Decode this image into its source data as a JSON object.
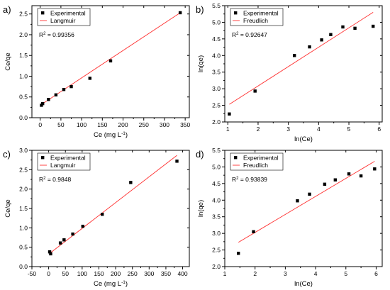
{
  "colors": {
    "points": "#000000",
    "fit": "#ff3030",
    "frame": "#000000",
    "background": "#ffffff"
  },
  "chart_data": [
    {
      "panel": "a)",
      "type": "scatter",
      "xlabel": "Ce (mg L",
      "xlabel_sup": "-1",
      "xlabel_end": ")",
      "ylabel": "Ce/qe",
      "xlim": [
        -20,
        360
      ],
      "ylim": [
        0,
        2.7
      ],
      "xticks": [
        0,
        50,
        100,
        150,
        200,
        250,
        300,
        350
      ],
      "yticks": [
        0.0,
        0.5,
        1.0,
        1.5,
        2.0,
        2.5
      ],
      "xtick_labels": [
        "0",
        "50",
        "100",
        "150",
        "200",
        "250",
        "300",
        "350"
      ],
      "ytick_labels": [
        "0.0",
        "0.5",
        "1.0",
        "1.5",
        "2.0",
        "2.5"
      ],
      "legend": {
        "placement": "top-left",
        "points_label": "Experimental",
        "fit_label": "Langmuir"
      },
      "annotation": {
        "prefix": "R",
        "sup": "2",
        "text": " = 0.99356",
        "position": "upper-left"
      },
      "points": [
        [
          3,
          0.3
        ],
        [
          6,
          0.34
        ],
        [
          20,
          0.44
        ],
        [
          38,
          0.55
        ],
        [
          57,
          0.68
        ],
        [
          75,
          0.75
        ],
        [
          120,
          0.95
        ],
        [
          170,
          1.37
        ],
        [
          338,
          2.53
        ]
      ],
      "fit": [
        [
          0,
          0.3
        ],
        [
          338,
          2.53
        ]
      ]
    },
    {
      "panel": "b)",
      "type": "scatter",
      "xlabel": "ln(Ce)",
      "xlabel_sup": "",
      "xlabel_end": "",
      "ylabel": "ln(qe)",
      "xlim": [
        0.9,
        6.1
      ],
      "ylim": [
        2.0,
        5.5
      ],
      "xticks": [
        1,
        2,
        3,
        4,
        5,
        6
      ],
      "yticks": [
        2.0,
        2.5,
        3.0,
        3.5,
        4.0,
        4.5,
        5.0,
        5.5
      ],
      "xtick_labels": [
        "1",
        "2",
        "3",
        "4",
        "5",
        "6"
      ],
      "ytick_labels": [
        "2.0",
        "2.5",
        "3.0",
        "3.5",
        "4.0",
        "4.5",
        "5.0",
        "5.5"
      ],
      "legend": {
        "placement": "top-left",
        "points_label": "Experimental",
        "fit_label": "Freudlich"
      },
      "annotation": {
        "prefix": "R",
        "sup": "2",
        "text": " = 0.92647",
        "position": "upper-left"
      },
      "points": [
        [
          1.05,
          2.24
        ],
        [
          1.9,
          2.93
        ],
        [
          3.2,
          4.0
        ],
        [
          3.7,
          4.26
        ],
        [
          4.1,
          4.47
        ],
        [
          4.4,
          4.63
        ],
        [
          4.8,
          4.86
        ],
        [
          5.2,
          4.82
        ],
        [
          5.8,
          4.88
        ]
      ],
      "fit": [
        [
          1.05,
          2.53
        ],
        [
          5.8,
          5.3
        ]
      ]
    },
    {
      "panel": "c)",
      "type": "scatter",
      "xlabel": "Ce (mg L",
      "xlabel_sup": "-1",
      "xlabel_end": ")",
      "ylabel": "Ce/qe",
      "xlim": [
        -50,
        420
      ],
      "ylim": [
        0,
        3.0
      ],
      "xticks": [
        -50,
        0,
        50,
        100,
        150,
        200,
        250,
        300,
        350,
        400
      ],
      "yticks": [
        0.0,
        0.5,
        1.0,
        1.5,
        2.0,
        2.5,
        3.0
      ],
      "xtick_labels": [
        "-50",
        "0",
        "50",
        "100",
        "150",
        "200",
        "250",
        "300",
        "350",
        "400"
      ],
      "ytick_labels": [
        "0.0",
        "0.5",
        "1.0",
        "1.5",
        "2.0",
        "2.5",
        "3.0"
      ],
      "legend": {
        "placement": "top-left",
        "points_label": "Experimental",
        "fit_label": "Langmuir"
      },
      "annotation": {
        "prefix": "R",
        "sup": "2",
        "text": " = 0.9848",
        "position": "upper-left"
      },
      "points": [
        [
          3,
          0.38
        ],
        [
          6,
          0.33
        ],
        [
          35,
          0.61
        ],
        [
          46,
          0.69
        ],
        [
          72,
          0.84
        ],
        [
          102,
          1.04
        ],
        [
          160,
          1.35
        ],
        [
          245,
          2.17
        ],
        [
          383,
          2.72
        ]
      ],
      "fit": [
        [
          3,
          0.34
        ],
        [
          383,
          2.87
        ]
      ]
    },
    {
      "panel": "d)",
      "type": "scatter",
      "xlabel": "ln(Ce)",
      "xlabel_sup": "",
      "xlabel_end": "",
      "ylabel": "ln(qe)",
      "xlim": [
        1.0,
        6.2
      ],
      "ylim": [
        2.0,
        5.5
      ],
      "xticks": [
        1,
        2,
        3,
        4,
        5,
        6
      ],
      "yticks": [
        2.0,
        2.5,
        3.0,
        3.5,
        4.0,
        4.5,
        5.0,
        5.5
      ],
      "xtick_labels": [
        "1",
        "2",
        "3",
        "4",
        "5",
        "6"
      ],
      "ytick_labels": [
        "2.0",
        "2.5",
        "3.0",
        "3.5",
        "4.0",
        "4.5",
        "5.0",
        "5.5"
      ],
      "legend": {
        "placement": "top-left",
        "points_label": "Experimental",
        "fit_label": "Freudlich"
      },
      "annotation": {
        "prefix": "R",
        "sup": "2",
        "text": " = 0.93839",
        "position": "upper-left"
      },
      "points": [
        [
          1.45,
          2.4
        ],
        [
          1.95,
          3.05
        ],
        [
          3.4,
          3.98
        ],
        [
          3.8,
          4.18
        ],
        [
          4.3,
          4.48
        ],
        [
          4.65,
          4.61
        ],
        [
          5.1,
          4.79
        ],
        [
          5.5,
          4.73
        ],
        [
          5.95,
          4.94
        ]
      ],
      "fit": [
        [
          1.45,
          2.73
        ],
        [
          5.95,
          5.17
        ]
      ]
    }
  ]
}
